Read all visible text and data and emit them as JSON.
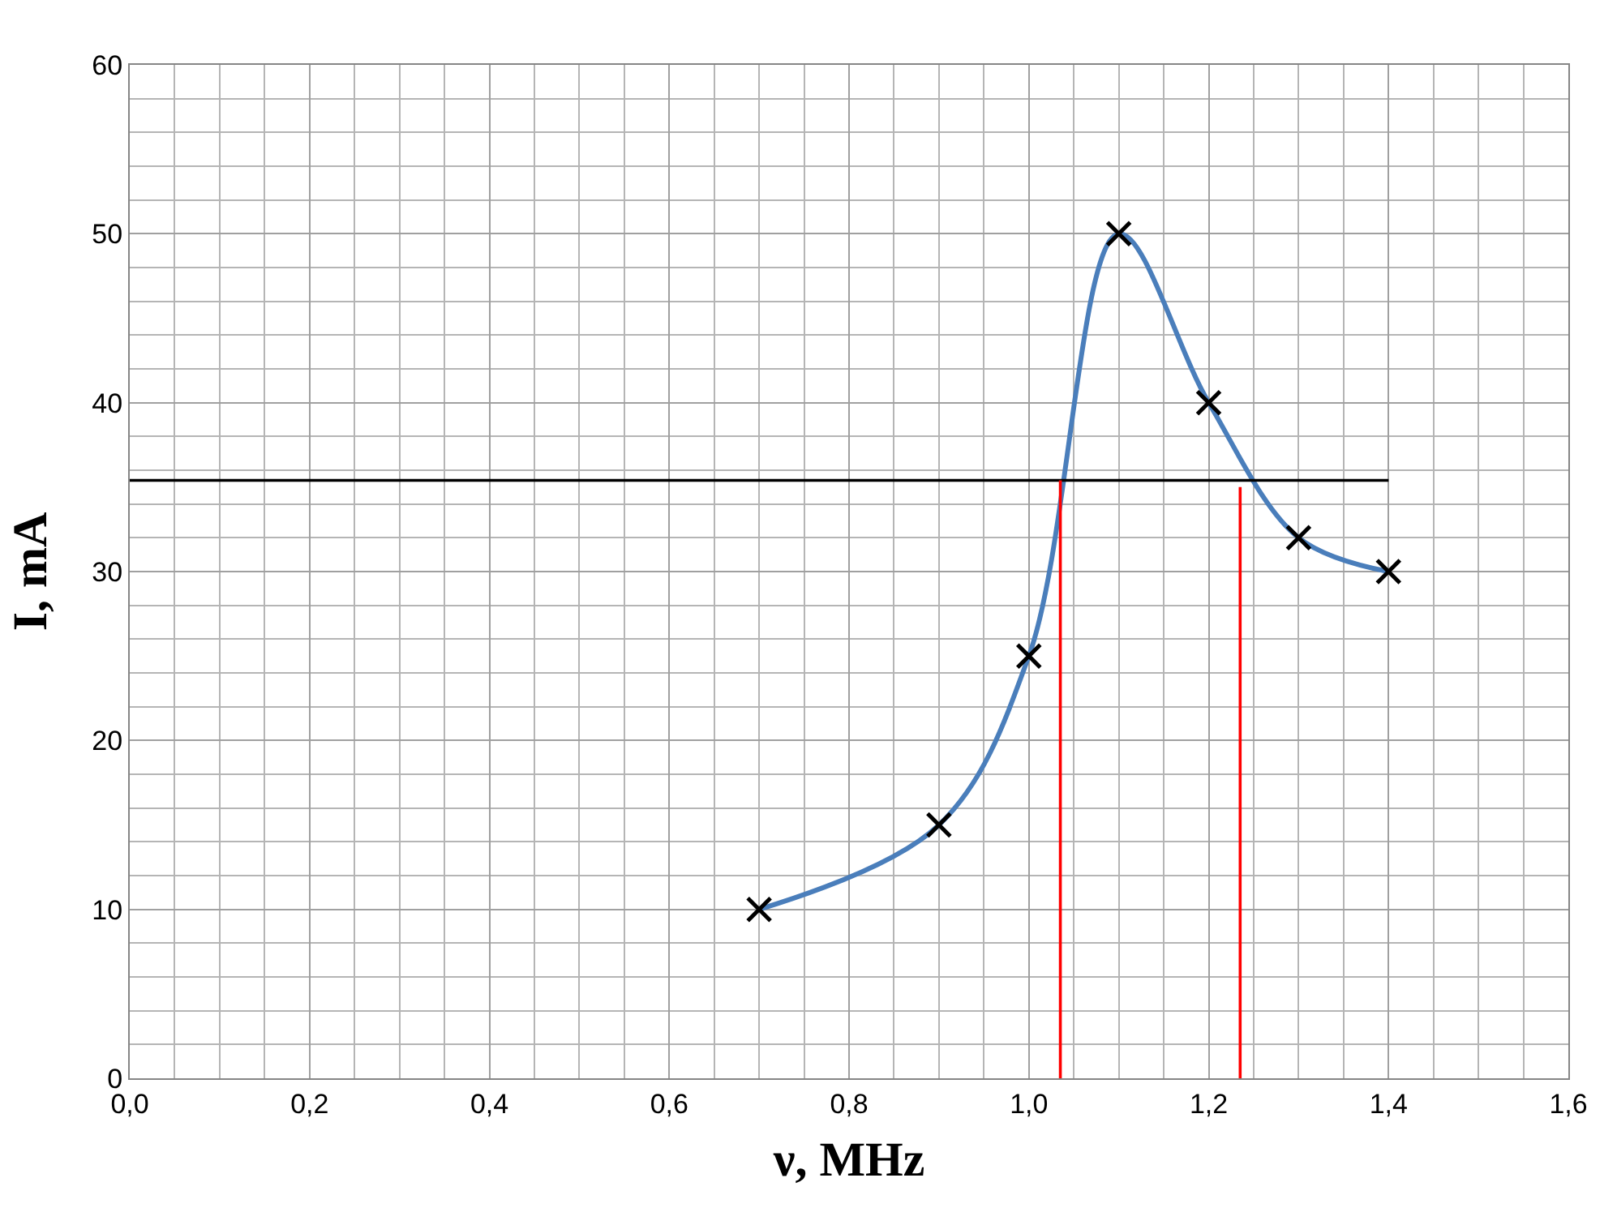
{
  "chart_data": {
    "type": "line",
    "xlabel": "ν, MHz",
    "ylabel": "I, mA",
    "xlim": [
      0,
      1.6
    ],
    "ylim": [
      0,
      60
    ],
    "xticks": [
      {
        "value": 0,
        "label": "0,0"
      },
      {
        "value": 0.2,
        "label": "0,2"
      },
      {
        "value": 0.4,
        "label": "0,4"
      },
      {
        "value": 0.6,
        "label": "0,6"
      },
      {
        "value": 0.8,
        "label": "0,8"
      },
      {
        "value": 1.0,
        "label": "1,0"
      },
      {
        "value": 1.2,
        "label": "1,2"
      },
      {
        "value": 1.4,
        "label": "1,4"
      },
      {
        "value": 1.6,
        "label": "1,6"
      }
    ],
    "yticks": [
      0,
      10,
      20,
      30,
      40,
      50,
      60
    ],
    "grid": true,
    "marker": "cross",
    "series": [
      {
        "color": "#4a7ebb",
        "x": [
          0.7,
          0.9,
          1.0,
          1.1,
          1.2,
          1.3,
          1.4
        ],
        "values": [
          10,
          15,
          25,
          50,
          40,
          32,
          30
        ]
      },
      {
        "color": "#000000",
        "x": [
          0,
          1.4
        ],
        "values": [
          35.4,
          35.4
        ],
        "marker": "none"
      },
      {
        "color": "#ff0000",
        "x": [
          1.035,
          1.035
        ],
        "values": [
          0,
          35.4
        ],
        "marker": "none"
      },
      {
        "color": "#ff0000",
        "x": [
          1.235,
          1.235
        ],
        "values": [
          0,
          35
        ],
        "marker": "none"
      }
    ]
  }
}
